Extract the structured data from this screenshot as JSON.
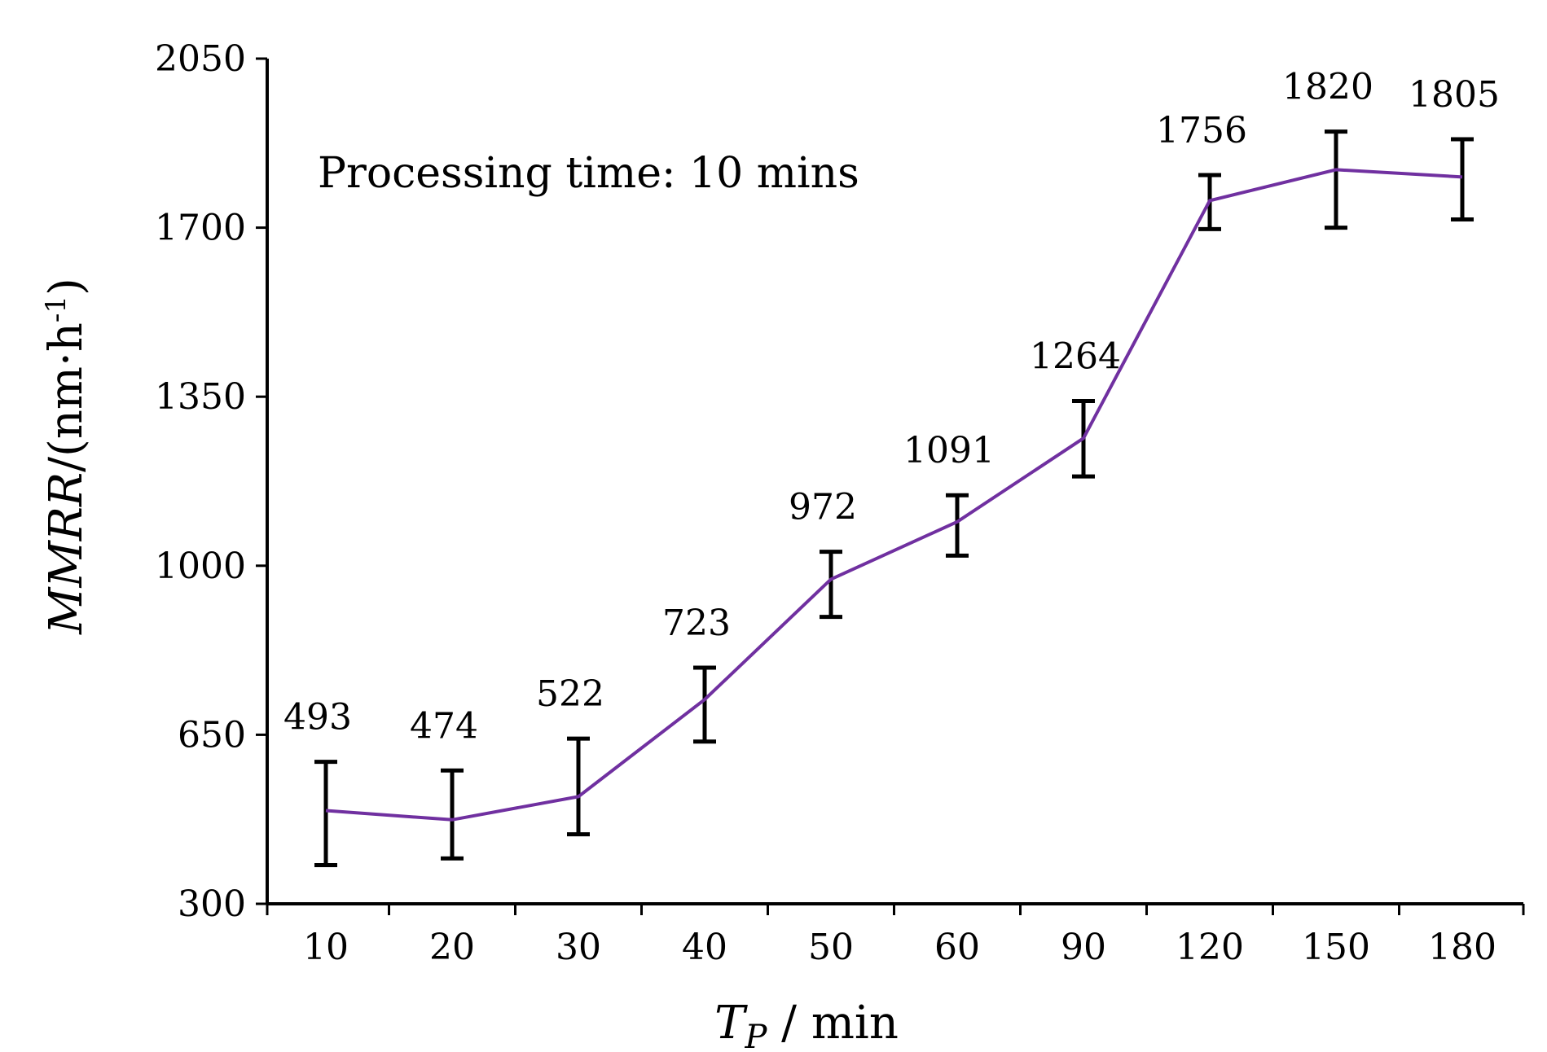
{
  "chart_data": {
    "type": "line",
    "title": "",
    "annotation": "Processing time: 10 mins",
    "xlabel": {
      "symbol": "T",
      "subscript": "P",
      "unit": " / min"
    },
    "ylabel": {
      "symbol": "MMRR",
      "unit_prefix": "/(nm·h",
      "unit_sup": "-1",
      "unit_suffix": ")"
    },
    "categories": [
      "10",
      "20",
      "30",
      "40",
      "50",
      "60",
      "90",
      "120",
      "150",
      "180"
    ],
    "series": [
      {
        "name": "MMRR",
        "color": "#7030a0",
        "values": [
          493,
          474,
          522,
          723,
          972,
          1091,
          1264,
          1756,
          1820,
          1805
        ],
        "error_low": [
          380,
          394,
          444,
          636,
          894,
          1021,
          1185,
          1697,
          1700,
          1717
        ],
        "error_high": [
          594,
          576,
          642,
          789,
          1029,
          1146,
          1341,
          1809,
          1899,
          1883
        ]
      }
    ],
    "ylim": [
      300,
      2050
    ],
    "yticks": [
      300,
      650,
      1000,
      1350,
      1700,
      2050
    ],
    "grid": false,
    "legend": "none"
  }
}
